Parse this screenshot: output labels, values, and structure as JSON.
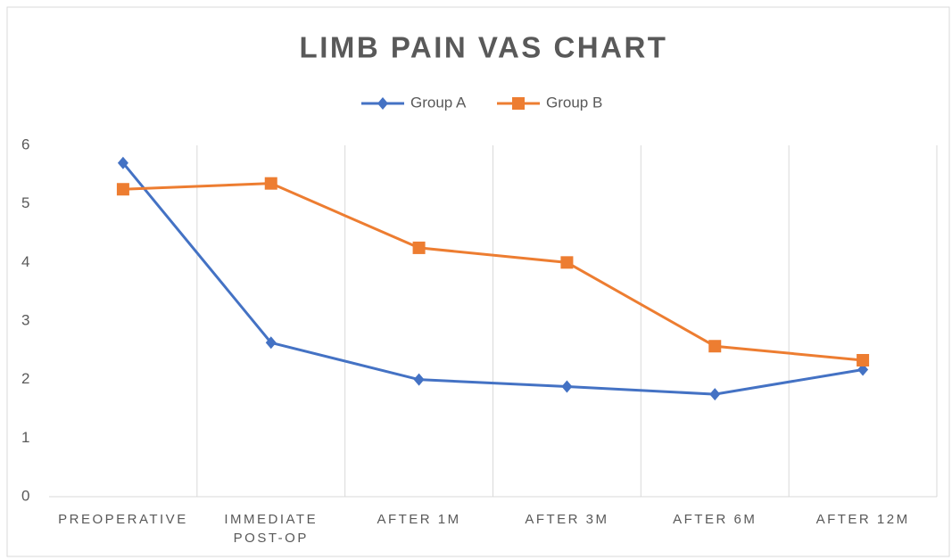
{
  "chart_data": {
    "type": "line",
    "title": "LIMB PAIN VAS CHART",
    "categories": [
      "PREOPERATIVE",
      "IMMEDIATE POST-OP",
      "AFTER 1M",
      "AFTER 3M",
      "AFTER 6M",
      "AFTER 12M"
    ],
    "series": [
      {
        "name": "Group A",
        "color": "#4472c4",
        "marker": "diamond",
        "values": [
          5.7,
          2.63,
          2.0,
          1.88,
          1.75,
          2.17
        ]
      },
      {
        "name": "Group B",
        "color": "#ed7d31",
        "marker": "square",
        "values": [
          5.25,
          5.35,
          4.25,
          4.0,
          2.57,
          2.33
        ]
      }
    ],
    "ylim": [
      0,
      6
    ],
    "yticks": [
      0,
      1,
      2,
      3,
      4,
      5,
      6
    ],
    "grid": "vertical",
    "legend": "top"
  }
}
